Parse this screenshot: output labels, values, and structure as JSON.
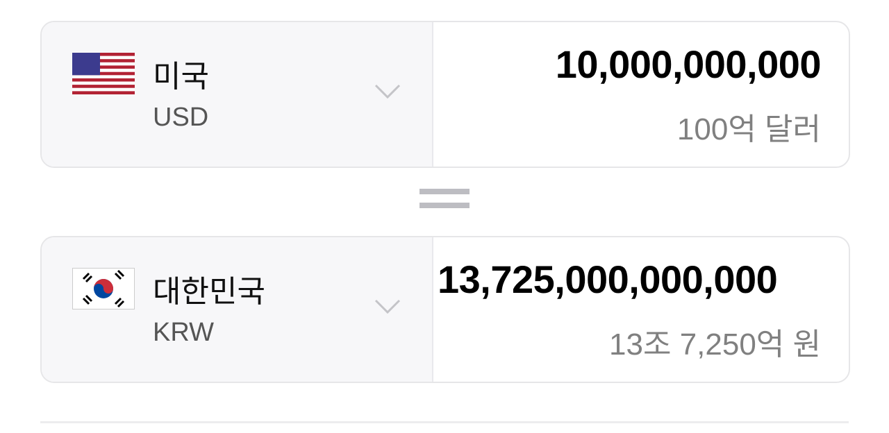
{
  "from": {
    "country": "미국",
    "code": "USD",
    "flag_icon": "us-flag-icon",
    "amount": "10,000,000,000",
    "amount_words": "100억 달러"
  },
  "equals_icon": "equals-icon",
  "to": {
    "country": "대한민국",
    "code": "KRW",
    "flag_icon": "kr-flag-icon",
    "amount": "13,725,000,000,000",
    "amount_words": "13조 7,250억 원"
  },
  "colors": {
    "panel_bg": "#f7f7f9",
    "border": "#e6e6e8",
    "muted_text": "#808080",
    "us_blue": "#3c3b8e",
    "us_red": "#b22234",
    "kr_red": "#cd2e3a",
    "kr_blue": "#0047a0"
  }
}
